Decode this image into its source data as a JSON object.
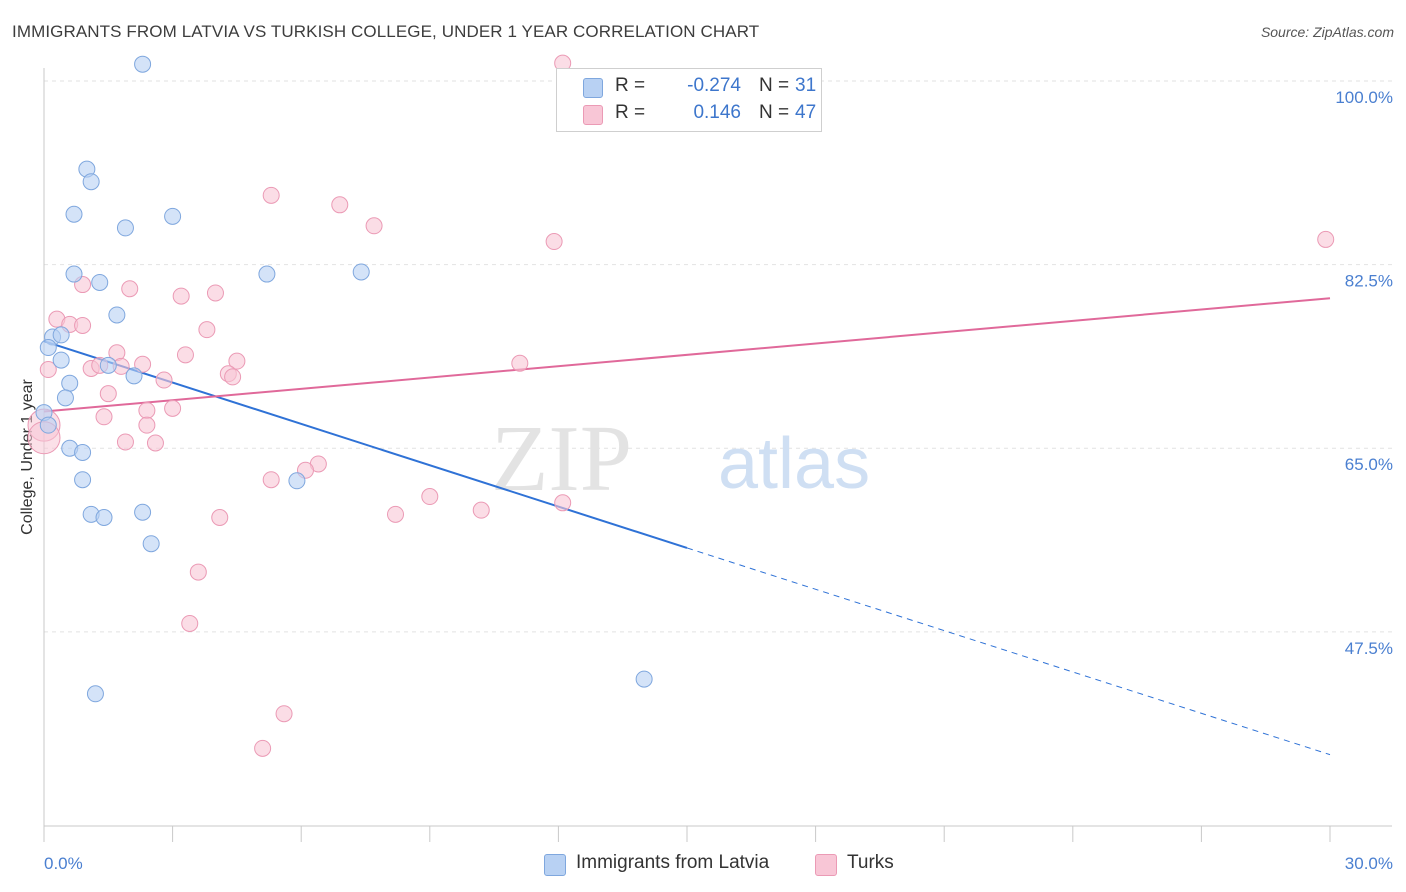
{
  "title": "IMMIGRANTS FROM LATVIA VS TURKISH COLLEGE, UNDER 1 YEAR CORRELATION CHART",
  "source": "Source: ZipAtlas.com",
  "watermark": {
    "zip": "ZIP",
    "atlas": "atlas"
  },
  "legend": {
    "series": [
      {
        "r_label": "R =",
        "r_value": "-0.274",
        "n_label": "N =",
        "n_value": "31"
      },
      {
        "r_label": "R =",
        "r_value": "0.146",
        "n_label": "N =",
        "n_value": "47"
      }
    ]
  },
  "colors": {
    "blue_fill": "#b8d1f3",
    "blue_stroke": "#7fa7de",
    "blue_line": "#2f72d6",
    "pink_fill": "#f8c6d6",
    "pink_stroke": "#eb9ab5",
    "pink_line": "#e0699a",
    "tick_text": "#4a7fd0",
    "grid": "#e2e2e2"
  },
  "chart_data": {
    "type": "scatter",
    "title": "IMMIGRANTS FROM LATVIA VS TURKISH COLLEGE, UNDER 1 YEAR CORRELATION CHART",
    "xlabel": "",
    "ylabel": "College, Under 1 year",
    "xlim": [
      0.0,
      30.0
    ],
    "ylim": [
      29.0,
      102.0
    ],
    "x_tick_labels": [
      "0.0%",
      "30.0%"
    ],
    "y_ticks": [
      47.5,
      65.0,
      82.5,
      100.0
    ],
    "y_tick_labels": [
      "47.5%",
      "65.0%",
      "82.5%",
      "100.0%"
    ],
    "grid": true,
    "series": [
      {
        "name": "Immigrants from Latvia",
        "color": "blue",
        "points": [
          [
            2.3,
            101.6
          ],
          [
            1.0,
            91.6
          ],
          [
            1.1,
            90.4
          ],
          [
            0.7,
            87.3
          ],
          [
            1.9,
            86.0
          ],
          [
            3.0,
            87.1
          ],
          [
            0.7,
            81.6
          ],
          [
            1.3,
            80.8
          ],
          [
            5.2,
            81.6
          ],
          [
            7.4,
            81.8
          ],
          [
            1.7,
            77.7
          ],
          [
            0.2,
            75.6
          ],
          [
            0.4,
            75.8
          ],
          [
            0.1,
            74.6
          ],
          [
            0.4,
            73.4
          ],
          [
            1.5,
            72.9
          ],
          [
            2.1,
            71.9
          ],
          [
            0.6,
            71.2
          ],
          [
            0.5,
            69.8
          ],
          [
            0.0,
            68.4
          ],
          [
            0.6,
            65.0
          ],
          [
            0.9,
            64.6
          ],
          [
            0.9,
            62.0
          ],
          [
            1.1,
            58.7
          ],
          [
            1.4,
            58.4
          ],
          [
            2.3,
            58.9
          ],
          [
            2.5,
            55.9
          ],
          [
            5.9,
            61.9
          ],
          [
            14.0,
            43.0
          ],
          [
            1.2,
            41.6
          ],
          [
            0.1,
            67.2
          ]
        ],
        "trend": {
          "x0": 0.0,
          "y0": 75.2,
          "x1": 15.0,
          "y1": 55.5,
          "dashed_to_x": 30.0,
          "dashed_to_y": 35.8
        }
      },
      {
        "name": "Turks",
        "color": "pink",
        "points": [
          [
            12.1,
            101.7
          ],
          [
            5.3,
            89.1
          ],
          [
            6.9,
            88.2
          ],
          [
            7.7,
            86.2
          ],
          [
            11.9,
            84.7
          ],
          [
            29.9,
            84.9
          ],
          [
            0.9,
            80.6
          ],
          [
            2.0,
            80.2
          ],
          [
            3.2,
            79.5
          ],
          [
            4.0,
            79.8
          ],
          [
            0.3,
            77.3
          ],
          [
            0.6,
            76.8
          ],
          [
            0.9,
            76.7
          ],
          [
            3.8,
            76.3
          ],
          [
            1.7,
            74.1
          ],
          [
            3.3,
            73.9
          ],
          [
            2.3,
            73.0
          ],
          [
            1.1,
            72.6
          ],
          [
            1.3,
            72.9
          ],
          [
            1.8,
            72.8
          ],
          [
            4.5,
            73.3
          ],
          [
            11.1,
            73.1
          ],
          [
            0.1,
            72.5
          ],
          [
            2.8,
            71.5
          ],
          [
            4.3,
            72.1
          ],
          [
            4.4,
            71.8
          ],
          [
            1.5,
            70.2
          ],
          [
            3.0,
            68.8
          ],
          [
            2.4,
            68.6
          ],
          [
            1.4,
            68.0
          ],
          [
            2.4,
            67.2
          ],
          [
            0.0,
            67.2
          ],
          [
            1.9,
            65.6
          ],
          [
            2.6,
            65.5
          ],
          [
            6.4,
            63.5
          ],
          [
            5.3,
            62.0
          ],
          [
            6.1,
            62.9
          ],
          [
            9.0,
            60.4
          ],
          [
            10.2,
            59.1
          ],
          [
            8.2,
            58.7
          ],
          [
            12.1,
            59.8
          ],
          [
            4.1,
            58.4
          ],
          [
            3.6,
            53.2
          ],
          [
            3.4,
            48.3
          ],
          [
            5.6,
            39.7
          ],
          [
            5.1,
            36.4
          ],
          [
            0.0,
            66.0
          ]
        ],
        "trend": {
          "x0": 0.0,
          "y0": 68.5,
          "x1": 30.0,
          "y1": 79.3
        }
      }
    ]
  },
  "bottom_legend": [
    "Immigrants from Latvia",
    "Turks"
  ]
}
